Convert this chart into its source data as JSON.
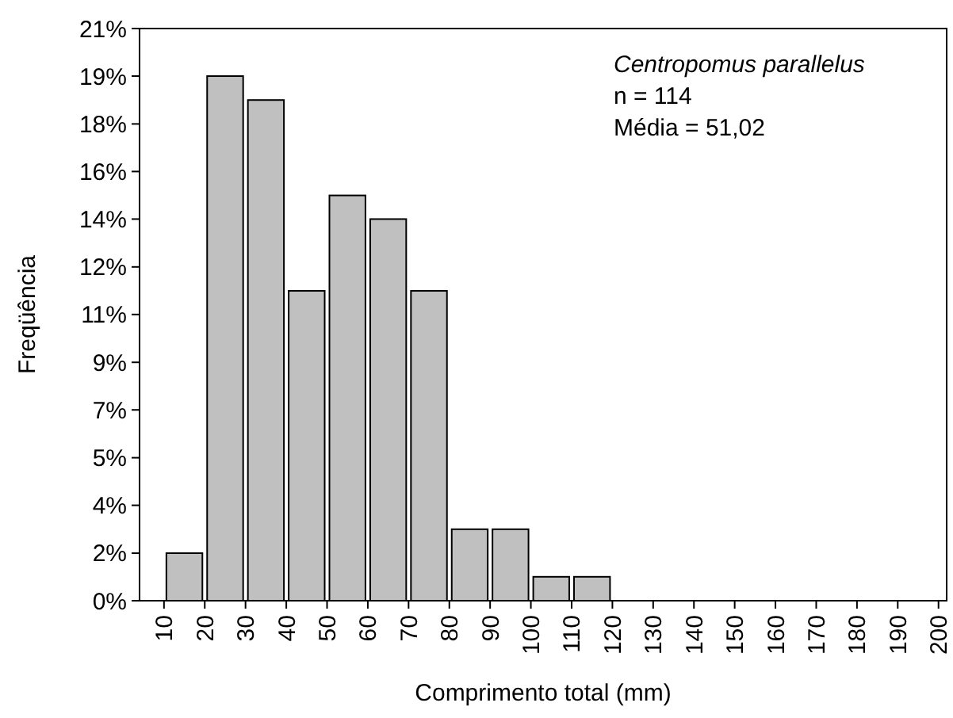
{
  "chart_data": {
    "type": "histogram",
    "xlabel": "Comprimento total (mm)",
    "ylabel": "Freqüência",
    "bins": [
      10,
      20,
      30,
      40,
      50,
      60,
      70,
      80,
      90,
      100,
      110,
      120,
      130,
      140,
      150,
      160,
      170,
      180,
      190,
      200
    ],
    "values": [
      1.75,
      19.3,
      18.42,
      11.4,
      14.91,
      14.04,
      11.4,
      2.63,
      2.63,
      0.88,
      0.88,
      0,
      0,
      0,
      0,
      0,
      0,
      0,
      0
    ],
    "color": "#c0c0c0",
    "xlim": [
      4,
      202
    ],
    "xticks": [
      10,
      20,
      30,
      40,
      50,
      60,
      70,
      80,
      90,
      100,
      110,
      120,
      130,
      140,
      150,
      160,
      170,
      180,
      190,
      200
    ],
    "ylim": [
      0,
      21.05
    ],
    "yticks": [
      {
        "value": 0,
        "label": "0%"
      },
      {
        "value": 1.75,
        "label": "2%"
      },
      {
        "value": 3.51,
        "label": "4%"
      },
      {
        "value": 5.26,
        "label": "5%"
      },
      {
        "value": 7.02,
        "label": "7%"
      },
      {
        "value": 8.77,
        "label": "9%"
      },
      {
        "value": 10.53,
        "label": "11%"
      },
      {
        "value": 12.28,
        "label": "12%"
      },
      {
        "value": 14.04,
        "label": "14%"
      },
      {
        "value": 15.79,
        "label": "16%"
      },
      {
        "value": 17.54,
        "label": "18%"
      },
      {
        "value": 19.3,
        "label": "19%"
      },
      {
        "value": 21.05,
        "label": "21%"
      }
    ],
    "annotations": [
      "Centropomus parallelus",
      "n = 114",
      "Média = 51,02"
    ],
    "grid": false
  }
}
